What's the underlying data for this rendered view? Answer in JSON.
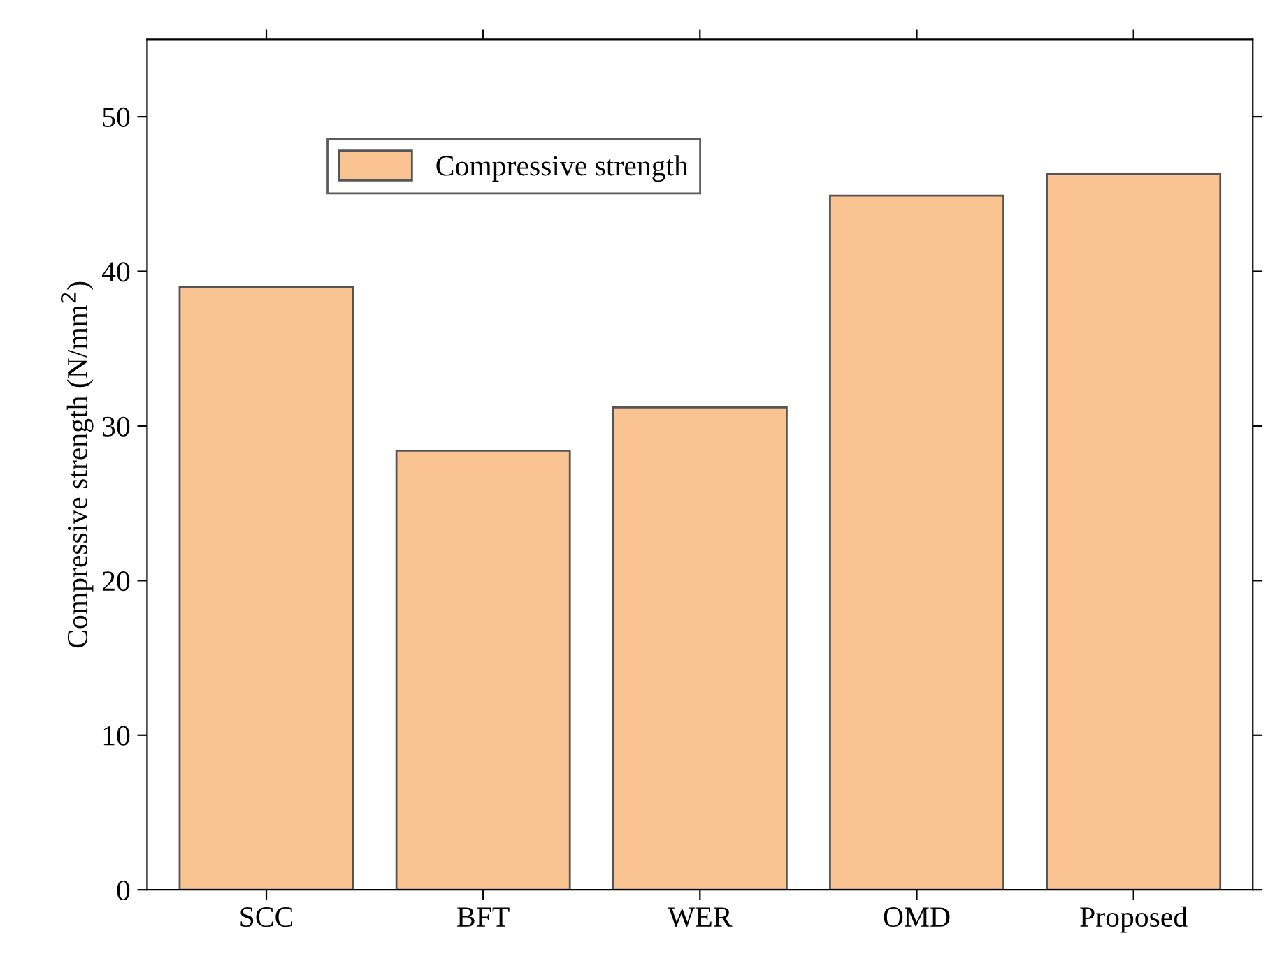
{
  "chart_data": {
    "type": "bar",
    "ylabel": "Compressive strength (N/mm$^{2}$)",
    "categories": [
      "SCC",
      "BFT",
      "WER",
      "OMD",
      "Proposed"
    ],
    "series": [
      {
        "name": "Compressive strength",
        "color": "#f9c491",
        "values": [
          39.0,
          28.4,
          31.2,
          44.9,
          46.3
        ]
      }
    ],
    "ylim": [
      0,
      55
    ],
    "yticks": [
      0,
      10,
      20,
      30,
      40,
      50
    ],
    "grid": false,
    "legend": "top"
  }
}
